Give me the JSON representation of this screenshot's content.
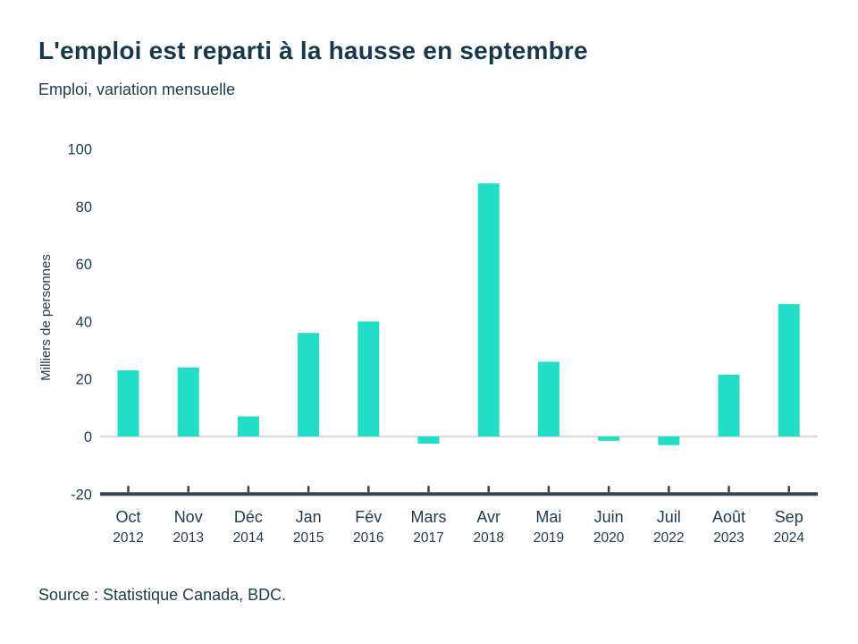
{
  "page": {
    "title": "L'emploi est reparti à la hausse en septembre",
    "subtitle": "Emploi, variation mensuelle",
    "source": "Source : Statistique Canada, BDC."
  },
  "colors": {
    "bar": "#22DEC6",
    "text": "#1D3B4E",
    "title_text": "#17374B",
    "axis_line": "#32414E",
    "zero_line": "#DADAD8",
    "background": "#FFFFFF"
  },
  "chart_data": {
    "type": "bar",
    "title": "L'emploi est reparti à la hausse en septembre",
    "subtitle": "Emploi, variation mensuelle",
    "ylabel": "Milliers de personnes",
    "xlabel": "",
    "categories": [
      {
        "month": "Oct",
        "year": "2012"
      },
      {
        "month": "Nov",
        "year": "2013"
      },
      {
        "month": "Déc",
        "year": "2014"
      },
      {
        "month": "Jan",
        "year": "2015"
      },
      {
        "month": "Fév",
        "year": "2016"
      },
      {
        "month": "Mars",
        "year": "2017"
      },
      {
        "month": "Avr",
        "year": "2018"
      },
      {
        "month": "Mai",
        "year": "2019"
      },
      {
        "month": "Juin",
        "year": "2020"
      },
      {
        "month": "Juil",
        "year": "2022"
      },
      {
        "month": "Août",
        "year": "2023"
      },
      {
        "month": "Sep",
        "year": "2024"
      }
    ],
    "values": [
      23,
      24,
      7,
      36,
      40,
      -2.5,
      88,
      26,
      -1.5,
      -3,
      21.5,
      46
    ],
    "yticks": [
      100,
      80,
      60,
      40,
      20,
      0,
      -20
    ],
    "ylim": [
      -20,
      100
    ],
    "grid": "zero-line-only",
    "legend": "none",
    "source": "Source : Statistique Canada, BDC."
  }
}
